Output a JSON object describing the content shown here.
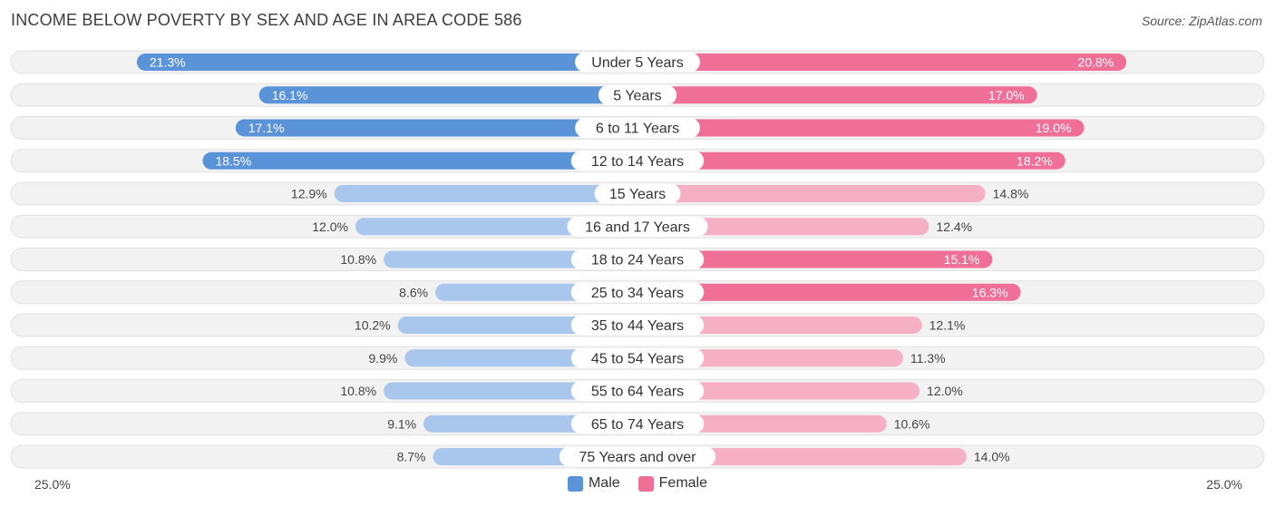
{
  "title": "INCOME BELOW POVERTY BY SEX AND AGE IN AREA CODE 586",
  "source": "Source: ZipAtlas.com",
  "axis": {
    "left_label": "25.0%",
    "right_label": "25.0%"
  },
  "colors": {
    "male_strong": "#5b93d9",
    "male_light": "#a9c7ec",
    "female_strong": "#f06f97",
    "female_light": "#f6b0c6",
    "row_bg": "#f2f2f2",
    "row_border": "#e2e2e2"
  },
  "legend": {
    "male": "Male",
    "female": "Female"
  },
  "chart_data": {
    "type": "bar",
    "orientation": "horizontal-diverging",
    "title": "INCOME BELOW POVERTY BY SEX AND AGE IN AREA CODE 586",
    "xlim": [
      -25,
      25
    ],
    "categories": [
      "Under 5 Years",
      "5 Years",
      "6 to 11 Years",
      "12 to 14 Years",
      "15 Years",
      "16 and 17 Years",
      "18 to 24 Years",
      "25 to 34 Years",
      "35 to 44 Years",
      "45 to 54 Years",
      "55 to 64 Years",
      "65 to 74 Years",
      "75 Years and over"
    ],
    "series": [
      {
        "name": "Male",
        "values": [
          21.3,
          16.1,
          17.1,
          18.5,
          12.9,
          12.0,
          10.8,
          8.6,
          10.2,
          9.9,
          10.8,
          9.1,
          8.7
        ],
        "labels": [
          "21.3%",
          "16.1%",
          "17.1%",
          "18.5%",
          "12.9%",
          "12.0%",
          "10.8%",
          "8.6%",
          "10.2%",
          "9.9%",
          "10.8%",
          "9.1%",
          "8.7%"
        ]
      },
      {
        "name": "Female",
        "values": [
          20.8,
          17.0,
          19.0,
          18.2,
          14.8,
          12.4,
          15.1,
          16.3,
          12.1,
          11.3,
          12.0,
          10.6,
          14.0
        ],
        "labels": [
          "20.8%",
          "17.0%",
          "19.0%",
          "18.2%",
          "14.8%",
          "12.4%",
          "15.1%",
          "16.3%",
          "12.1%",
          "11.3%",
          "12.0%",
          "10.6%",
          "14.0%"
        ]
      }
    ],
    "legend_position": "bottom-center"
  }
}
